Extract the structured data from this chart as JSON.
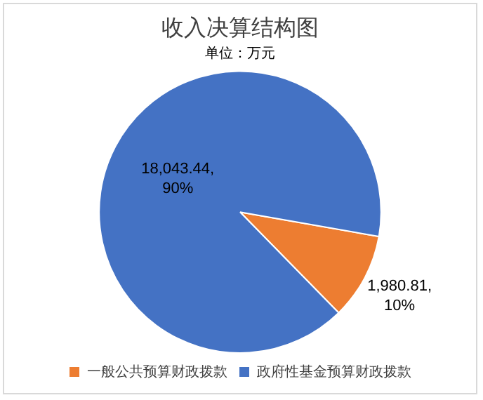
{
  "chart_data": {
    "type": "pie",
    "title": "收入决算结构图",
    "subtitle": "单位：万元",
    "categories": [
      "一般公共预算财政拨款",
      "政府性基金预算财政拨款"
    ],
    "values": [
      1980.81,
      18043.44
    ],
    "colors": [
      "#ed7d31",
      "#4472c4"
    ],
    "value_labels": [
      "1,980.81, 10%",
      "18,043.44, 90%"
    ],
    "legend": "bottom"
  }
}
